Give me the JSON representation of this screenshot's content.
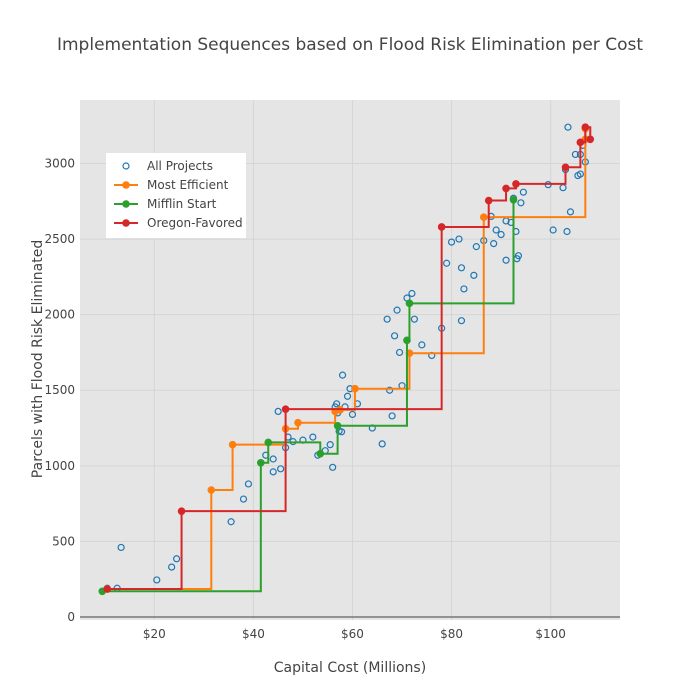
{
  "chart_data": {
    "type": "scatter",
    "title": "Implementation Sequences based on Flood Risk Elimination per Cost",
    "xlabel": "Capital Cost (Millions)",
    "ylabel": "Parcels with Flood Risk Eliminated",
    "xlim": [
      5,
      114
    ],
    "ylim": [
      -20,
      3420
    ],
    "x_ticks": [
      20,
      40,
      60,
      80,
      100
    ],
    "x_tick_labels": [
      "$20",
      "$40",
      "$60",
      "$80",
      "$100"
    ],
    "y_ticks": [
      0,
      500,
      1000,
      1500,
      2000,
      2500,
      3000
    ],
    "y_tick_labels": [
      "0",
      "500",
      "1000",
      "1500",
      "2000",
      "2500",
      "3000"
    ],
    "grid": true,
    "legend_position": "top-left",
    "colors": {
      "plot_bg": "#e5e5e5",
      "grid": "#d5d5d5",
      "all_projects": "#1f77b4",
      "most_efficient": "#ff7f0e",
      "mifflin_start": "#2ca02c",
      "oregon_favored": "#d62728"
    },
    "series": [
      {
        "name": "All Projects",
        "mode": "markers",
        "color": "#1f77b4",
        "x": [
          10.5,
          12.5,
          13.3,
          20.5,
          23.5,
          24.5,
          35.5,
          38,
          39,
          41.5,
          42.5,
          44,
          44,
          45,
          45.5,
          46.5,
          47,
          48,
          50,
          52,
          53,
          53.5,
          54.5,
          55.5,
          56,
          56.5,
          56.8,
          57,
          57.3,
          57.8,
          58,
          58.5,
          59,
          59.5,
          60,
          60.5,
          61,
          64,
          66,
          67,
          67.5,
          68,
          68.5,
          69,
          69.5,
          70,
          71,
          72,
          72.5,
          74,
          76,
          78,
          79,
          80,
          81.5,
          82,
          82,
          82.5,
          84.5,
          85,
          86.5,
          88,
          88.5,
          89,
          90,
          91,
          91,
          92,
          92.5,
          93,
          93.2,
          93.5,
          94,
          94.5,
          99.5,
          100.5,
          102.5,
          103,
          103.3,
          103.5,
          104,
          105,
          105.5,
          106,
          106,
          106.5,
          107
        ],
        "y": [
          190,
          190,
          460,
          245,
          330,
          385,
          630,
          780,
          880,
          1020,
          1070,
          960,
          1045,
          1360,
          980,
          1120,
          1190,
          1160,
          1170,
          1190,
          1070,
          1080,
          1100,
          1140,
          990,
          1390,
          1410,
          1350,
          1230,
          1225,
          1600,
          1390,
          1460,
          1510,
          1340,
          1510,
          1410,
          1250,
          1145,
          1970,
          1500,
          1330,
          1860,
          2030,
          1750,
          1530,
          2110,
          2140,
          1970,
          1800,
          1730,
          1910,
          2340,
          2480,
          2500,
          1960,
          2310,
          2170,
          2260,
          2450,
          2490,
          2650,
          2470,
          2560,
          2530,
          2360,
          2620,
          2610,
          2770,
          2550,
          2370,
          2390,
          2740,
          2810,
          2860,
          2560,
          2840,
          2960,
          2550,
          3240,
          2680,
          3060,
          2920,
          2930,
          3060,
          3120,
          3010
        ]
      },
      {
        "name": "Most Efficient",
        "mode": "lines+markers",
        "color": "#ff7f0e",
        "x": [
          10.5,
          31.5,
          35.8,
          46.5,
          49,
          56.5,
          57.5,
          60.5,
          71.5,
          86.5,
          107,
          107
        ],
        "y": [
          185,
          840,
          1140,
          1245,
          1285,
          1360,
          1370,
          1510,
          1745,
          2645,
          3160,
          3230
        ]
      },
      {
        "name": "Mifflin Start",
        "mode": "lines+markers",
        "color": "#2ca02c",
        "x": [
          9.5,
          41.5,
          43,
          53.5,
          57,
          71,
          71.5,
          92.5
        ],
        "y": [
          170,
          1020,
          1155,
          1080,
          1265,
          1830,
          2075,
          2760
        ]
      },
      {
        "name": "Oregon-Favored",
        "mode": "lines+markers",
        "color": "#d62728",
        "x": [
          10.5,
          25.5,
          46.5,
          78,
          87.5,
          91,
          93,
          103,
          106,
          107,
          108
        ],
        "y": [
          185,
          700,
          1375,
          2580,
          2755,
          2835,
          2865,
          2975,
          3140,
          3240,
          3160
        ]
      }
    ]
  }
}
